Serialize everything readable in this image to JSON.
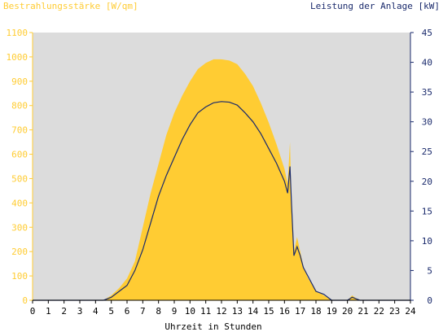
{
  "chart_data": {
    "type": "area",
    "left_title": "Bestrahlungsstärke [W/qm]",
    "right_title": "Leistung der Anlage [kW]",
    "xlabel": "Uhrzeit in Stunden",
    "xlim": [
      0,
      24
    ],
    "x_ticks": [
      "0",
      "1",
      "2",
      "3",
      "4",
      "5",
      "6",
      "7",
      "8",
      "9",
      "10",
      "11",
      "12",
      "13",
      "14",
      "15",
      "16",
      "17",
      "18",
      "19",
      "20",
      "21",
      "22",
      "23",
      "24"
    ],
    "y_left_lim": [
      0,
      1100
    ],
    "y_left_ticks": [
      "0",
      "100",
      "200",
      "300",
      "400",
      "500",
      "600",
      "700",
      "800",
      "900",
      "1000",
      "1100"
    ],
    "y_right_lim": [
      0,
      45
    ],
    "y_right_ticks": [
      "0",
      "5",
      "10",
      "15",
      "20",
      "25",
      "30",
      "35",
      "40",
      "45"
    ],
    "grid": false,
    "colors": {
      "plot_background": "#dcdcdc",
      "irradiance_fill": "#ffcc33",
      "power_line": "#1a2a6c",
      "left_axis": "#ffcc33",
      "right_axis": "#1a2a6c"
    },
    "series": [
      {
        "axis": "left",
        "style": "area",
        "x": [
          0,
          4.5,
          5.0,
          5.5,
          6.0,
          6.5,
          7.0,
          7.5,
          8.0,
          8.5,
          9.0,
          9.5,
          10.0,
          10.5,
          11.0,
          11.5,
          12.0,
          12.5,
          13.0,
          13.5,
          14.0,
          14.5,
          15.0,
          15.5,
          16.0,
          16.2,
          16.35,
          16.45,
          16.6,
          16.8,
          17.0,
          17.2,
          17.5,
          18.0,
          18.5,
          19.0,
          19.3,
          20.0,
          20.3,
          20.5,
          20.8,
          24
        ],
        "y": [
          0,
          0,
          20,
          50,
          90,
          160,
          300,
          440,
          560,
          680,
          770,
          840,
          900,
          950,
          975,
          990,
          990,
          985,
          970,
          930,
          880,
          810,
          730,
          640,
          540,
          480,
          650,
          380,
          200,
          260,
          200,
          140,
          90,
          40,
          20,
          0,
          0,
          0,
          20,
          10,
          0,
          0
        ]
      },
      {
        "axis": "right",
        "style": "line",
        "x": [
          0,
          4.5,
          5.0,
          5.5,
          6.0,
          6.5,
          7.0,
          7.5,
          8.0,
          8.5,
          9.0,
          9.5,
          10.0,
          10.5,
          11.0,
          11.5,
          12.0,
          12.5,
          13.0,
          13.5,
          14.0,
          14.5,
          15.0,
          15.5,
          16.0,
          16.2,
          16.35,
          16.45,
          16.6,
          16.8,
          17.0,
          17.2,
          17.5,
          18.0,
          18.5,
          19.0,
          19.3,
          20.0,
          20.3,
          20.5,
          20.8,
          24
        ],
        "y": [
          0,
          0,
          0.5,
          1.5,
          2.5,
          5,
          8.5,
          13,
          17.5,
          21,
          24,
          27,
          29.5,
          31.5,
          32.5,
          33.2,
          33.4,
          33.3,
          32.8,
          31.5,
          30,
          28,
          25.5,
          23,
          20,
          18,
          22.5,
          16,
          7.5,
          9,
          7.5,
          5.5,
          4,
          1.5,
          1,
          0,
          0,
          0,
          0.5,
          0.3,
          0,
          0
        ]
      }
    ]
  }
}
